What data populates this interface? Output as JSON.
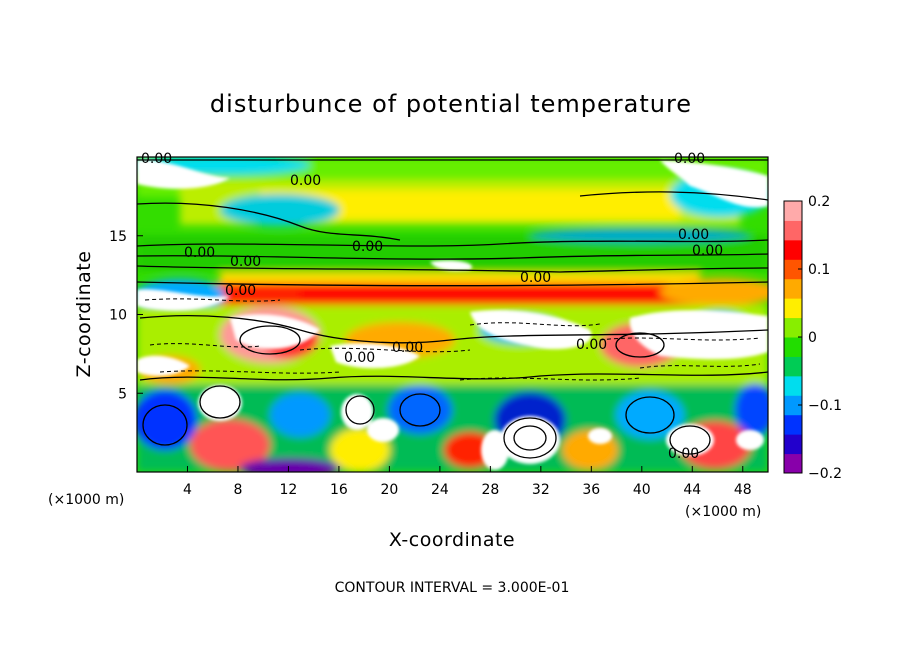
{
  "chart_data": {
    "type": "heatmap",
    "title": "disturbunce of potential temperature",
    "xlabel": "X-coordinate",
    "ylabel": "Z-coordinate",
    "x_units": "(×1000 m)",
    "y_units": "(×1000 m)",
    "xlim": [
      0,
      50
    ],
    "ylim": [
      0,
      20
    ],
    "x_ticks": [
      4,
      8,
      12,
      16,
      20,
      24,
      28,
      32,
      36,
      40,
      44,
      48
    ],
    "x_tick_labels": [
      "4",
      "8",
      "12",
      "16",
      "20",
      "24",
      "28",
      "32",
      "36",
      "40",
      "44",
      "48"
    ],
    "y_ticks": [
      5,
      10,
      15
    ],
    "y_tick_labels": [
      "5",
      "10",
      "15"
    ],
    "colorbar": {
      "range": [
        -0.2,
        0.2
      ],
      "ticks": [
        0.2,
        0.1,
        0,
        -0.1,
        -0.2
      ],
      "tick_labels": [
        "0.2",
        "0.1",
        "0",
        "−0.1",
        "−0.2"
      ],
      "colors": [
        "#8800aa",
        "#2200cc",
        "#0033ff",
        "#0099ff",
        "#00ddee",
        "#00cc55",
        "#22dd00",
        "#88ee00",
        "#ffee00",
        "#ffaa00",
        "#ff5500",
        "#ff0000",
        "#ff6666",
        "#ffaaaa"
      ]
    },
    "contour_interval_note": "CONTOUR INTERVAL = 3.000E-01",
    "contour_labels": [
      "0.00",
      "0.00",
      "0.00",
      "0.00",
      "0.00",
      "0.00",
      "0.00",
      "0.00",
      "0.00",
      "0.00",
      "0.00",
      "0.00",
      "0.00",
      "0.00"
    ]
  }
}
